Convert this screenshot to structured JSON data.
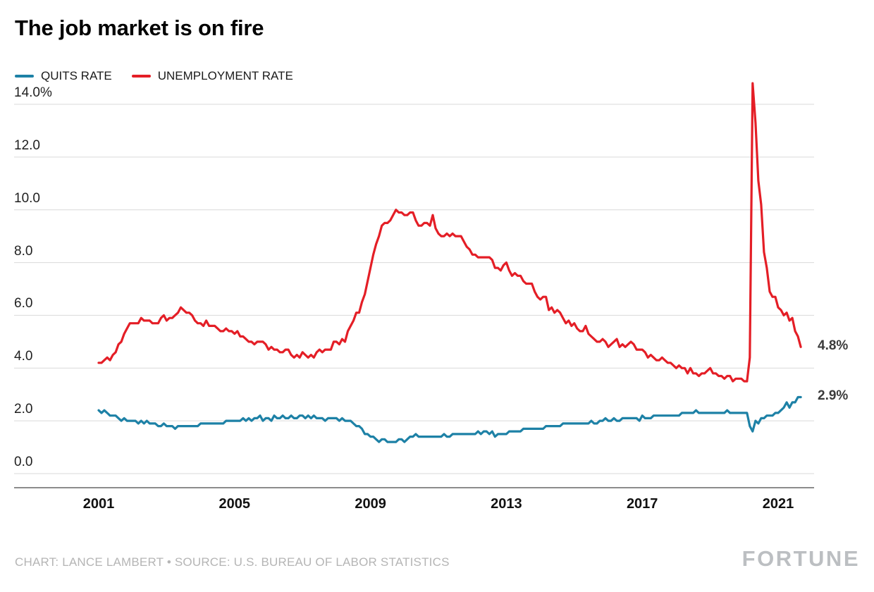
{
  "title": "The job market is on fire",
  "legend": [
    {
      "label": "QUITS RATE",
      "color": "#1d81a6"
    },
    {
      "label": "UNEMPLOYMENT RATE",
      "color": "#e41e26"
    }
  ],
  "end_labels": {
    "unemployment_rate": "4.8%",
    "quits_rate": "2.9%"
  },
  "footer": {
    "credit": "CHART: LANCE LAMBERT • SOURCE: U.S. BUREAU OF LABOR STATISTICS",
    "brand": "FORTUNE"
  },
  "colors": {
    "gridline": "#d9d9d9",
    "axis_line": "#1a1a1a"
  },
  "chart_data": {
    "type": "line",
    "title": "The job market is on fire",
    "xlabel": "",
    "ylabel": "",
    "ylim": [
      0,
      14
    ],
    "grid": true,
    "legend_position": "top-left",
    "x_ticks": [
      "2001",
      "2005",
      "2009",
      "2013",
      "2017",
      "2021"
    ],
    "y_ticks": [
      "14.0%",
      "12.0",
      "10.0",
      "8.0",
      "6.0",
      "4.0",
      "2.0",
      "0.0"
    ],
    "y_tick_values": [
      14,
      12,
      10,
      8,
      6,
      4,
      2,
      0
    ],
    "x_start_year": 2001,
    "x_resolution": "monthly",
    "series": [
      {
        "name": "QUITS RATE",
        "color": "#1d81a6",
        "values": [
          2.4,
          2.3,
          2.4,
          2.3,
          2.2,
          2.2,
          2.2,
          2.1,
          2.0,
          2.1,
          2.0,
          2.0,
          2.0,
          2.0,
          1.9,
          2.0,
          1.9,
          2.0,
          1.9,
          1.9,
          1.9,
          1.8,
          1.8,
          1.9,
          1.8,
          1.8,
          1.8,
          1.7,
          1.8,
          1.8,
          1.8,
          1.8,
          1.8,
          1.8,
          1.8,
          1.8,
          1.9,
          1.9,
          1.9,
          1.9,
          1.9,
          1.9,
          1.9,
          1.9,
          1.9,
          2.0,
          2.0,
          2.0,
          2.0,
          2.0,
          2.0,
          2.1,
          2.0,
          2.1,
          2.0,
          2.1,
          2.1,
          2.2,
          2.0,
          2.1,
          2.1,
          2.0,
          2.2,
          2.1,
          2.1,
          2.2,
          2.1,
          2.1,
          2.2,
          2.1,
          2.1,
          2.2,
          2.2,
          2.1,
          2.2,
          2.1,
          2.2,
          2.1,
          2.1,
          2.1,
          2.0,
          2.1,
          2.1,
          2.1,
          2.1,
          2.0,
          2.1,
          2.0,
          2.0,
          2.0,
          1.9,
          1.8,
          1.8,
          1.7,
          1.5,
          1.5,
          1.4,
          1.4,
          1.3,
          1.2,
          1.3,
          1.3,
          1.2,
          1.2,
          1.2,
          1.2,
          1.3,
          1.3,
          1.2,
          1.3,
          1.4,
          1.4,
          1.5,
          1.4,
          1.4,
          1.4,
          1.4,
          1.4,
          1.4,
          1.4,
          1.4,
          1.4,
          1.5,
          1.4,
          1.4,
          1.5,
          1.5,
          1.5,
          1.5,
          1.5,
          1.5,
          1.5,
          1.5,
          1.5,
          1.6,
          1.5,
          1.6,
          1.6,
          1.5,
          1.6,
          1.4,
          1.5,
          1.5,
          1.5,
          1.5,
          1.6,
          1.6,
          1.6,
          1.6,
          1.6,
          1.7,
          1.7,
          1.7,
          1.7,
          1.7,
          1.7,
          1.7,
          1.7,
          1.8,
          1.8,
          1.8,
          1.8,
          1.8,
          1.8,
          1.9,
          1.9,
          1.9,
          1.9,
          1.9,
          1.9,
          1.9,
          1.9,
          1.9,
          1.9,
          2.0,
          1.9,
          1.9,
          2.0,
          2.0,
          2.1,
          2.0,
          2.0,
          2.1,
          2.0,
          2.0,
          2.1,
          2.1,
          2.1,
          2.1,
          2.1,
          2.1,
          2.0,
          2.2,
          2.1,
          2.1,
          2.1,
          2.2,
          2.2,
          2.2,
          2.2,
          2.2,
          2.2,
          2.2,
          2.2,
          2.2,
          2.2,
          2.3,
          2.3,
          2.3,
          2.3,
          2.3,
          2.4,
          2.3,
          2.3,
          2.3,
          2.3,
          2.3,
          2.3,
          2.3,
          2.3,
          2.3,
          2.3,
          2.4,
          2.3,
          2.3,
          2.3,
          2.3,
          2.3,
          2.3,
          2.3,
          1.8,
          1.6,
          2.0,
          1.9,
          2.1,
          2.1,
          2.2,
          2.2,
          2.2,
          2.3,
          2.3,
          2.4,
          2.5,
          2.7,
          2.5,
          2.7,
          2.7,
          2.9,
          2.9
        ]
      },
      {
        "name": "UNEMPLOYMENT RATE",
        "color": "#e41e26",
        "values": [
          4.2,
          4.2,
          4.3,
          4.4,
          4.3,
          4.5,
          4.6,
          4.9,
          5.0,
          5.3,
          5.5,
          5.7,
          5.7,
          5.7,
          5.7,
          5.9,
          5.8,
          5.8,
          5.8,
          5.7,
          5.7,
          5.7,
          5.9,
          6.0,
          5.8,
          5.9,
          5.9,
          6.0,
          6.1,
          6.3,
          6.2,
          6.1,
          6.1,
          6.0,
          5.8,
          5.7,
          5.7,
          5.6,
          5.8,
          5.6,
          5.6,
          5.6,
          5.5,
          5.4,
          5.4,
          5.5,
          5.4,
          5.4,
          5.3,
          5.4,
          5.2,
          5.2,
          5.1,
          5.0,
          5.0,
          4.9,
          5.0,
          5.0,
          5.0,
          4.9,
          4.7,
          4.8,
          4.7,
          4.7,
          4.6,
          4.6,
          4.7,
          4.7,
          4.5,
          4.4,
          4.5,
          4.4,
          4.6,
          4.5,
          4.4,
          4.5,
          4.4,
          4.6,
          4.7,
          4.6,
          4.7,
          4.7,
          4.7,
          5.0,
          5.0,
          4.9,
          5.1,
          5.0,
          5.4,
          5.6,
          5.8,
          6.1,
          6.1,
          6.5,
          6.8,
          7.3,
          7.8,
          8.3,
          8.7,
          9.0,
          9.4,
          9.5,
          9.5,
          9.6,
          9.8,
          10.0,
          9.9,
          9.9,
          9.8,
          9.8,
          9.9,
          9.9,
          9.6,
          9.4,
          9.4,
          9.5,
          9.5,
          9.4,
          9.8,
          9.3,
          9.1,
          9.0,
          9.0,
          9.1,
          9.0,
          9.1,
          9.0,
          9.0,
          9.0,
          8.8,
          8.6,
          8.5,
          8.3,
          8.3,
          8.2,
          8.2,
          8.2,
          8.2,
          8.2,
          8.1,
          7.8,
          7.8,
          7.7,
          7.9,
          8.0,
          7.7,
          7.5,
          7.6,
          7.5,
          7.5,
          7.3,
          7.2,
          7.2,
          7.2,
          6.9,
          6.7,
          6.6,
          6.7,
          6.7,
          6.2,
          6.3,
          6.1,
          6.2,
          6.1,
          5.9,
          5.7,
          5.8,
          5.6,
          5.7,
          5.5,
          5.4,
          5.4,
          5.6,
          5.3,
          5.2,
          5.1,
          5.0,
          5.0,
          5.1,
          5.0,
          4.8,
          4.9,
          5.0,
          5.1,
          4.8,
          4.9,
          4.8,
          4.9,
          5.0,
          4.9,
          4.7,
          4.7,
          4.7,
          4.6,
          4.4,
          4.5,
          4.4,
          4.3,
          4.3,
          4.4,
          4.3,
          4.2,
          4.2,
          4.1,
          4.0,
          4.1,
          4.0,
          4.0,
          3.8,
          4.0,
          3.8,
          3.8,
          3.7,
          3.8,
          3.8,
          3.9,
          4.0,
          3.8,
          3.8,
          3.7,
          3.7,
          3.6,
          3.7,
          3.7,
          3.5,
          3.6,
          3.6,
          3.6,
          3.5,
          3.5,
          4.4,
          14.8,
          13.3,
          11.1,
          10.2,
          8.4,
          7.8,
          6.9,
          6.7,
          6.7,
          6.3,
          6.2,
          6.0,
          6.1,
          5.8,
          5.9,
          5.4,
          5.2,
          4.8
        ]
      }
    ]
  }
}
